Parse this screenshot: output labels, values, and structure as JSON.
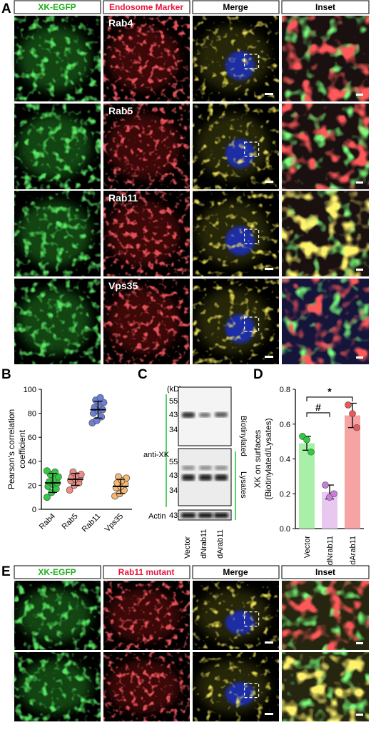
{
  "panels": {
    "A": {
      "letter": "A",
      "headers": [
        "XK-EGFP",
        "Endosome Marker",
        "Merge",
        "Inset"
      ],
      "header_colors": [
        "#1eb01e",
        "#e8173c",
        "#000000",
        "#000000"
      ],
      "rows": [
        "Rab4",
        "Rab5",
        "Rab11",
        "Vps35"
      ]
    },
    "B": {
      "letter": "B"
    },
    "C": {
      "letter": "C",
      "kd_label": "(kD)",
      "top_markers": [
        "55",
        "43",
        "34"
      ],
      "bottom_markers": [
        "55",
        "43",
        "34"
      ],
      "actin_marker": "43",
      "antibody_label": "anti-XK",
      "actin_label": "Actin",
      "section_labels": [
        "Biotinylated",
        "Lysates"
      ],
      "lanes": [
        "Vector",
        "dNrab11",
        "dArab11"
      ]
    },
    "D": {
      "letter": "D"
    },
    "E": {
      "letter": "E",
      "headers": [
        "XK-EGFP",
        "Rab11 mutant",
        "Merge",
        "Inset"
      ],
      "header_colors": [
        "#1eb01e",
        "#e8173c",
        "#000000",
        "#000000"
      ],
      "rows": [
        "dArab11",
        "dNrab11"
      ]
    }
  },
  "chart_data": [
    {
      "type": "scatter",
      "panel": "B",
      "title": "",
      "xlabel": "",
      "ylabel": "Pearson's correlation coefficient",
      "ylim": [
        0,
        100
      ],
      "yticks": [
        0,
        20,
        40,
        60,
        80,
        100
      ],
      "categories": [
        "Rab4",
        "Rab5",
        "Rab11",
        "Vps35"
      ],
      "colors": [
        "#2ecc40",
        "#f28b82",
        "#6a7fd6",
        "#f7b870"
      ],
      "series": [
        {
          "category": "Rab4",
          "mean": 22,
          "sd": 8,
          "values": [
            10,
            14,
            17,
            19,
            21,
            22,
            23,
            25,
            27,
            29,
            31,
            32
          ]
        },
        {
          "category": "Rab5",
          "mean": 25,
          "sd": 5,
          "values": [
            16,
            20,
            22,
            24,
            25,
            26,
            27,
            28,
            29,
            31
          ]
        },
        {
          "category": "Rab11",
          "mean": 83,
          "sd": 7,
          "values": [
            72,
            74,
            77,
            80,
            82,
            83,
            85,
            87,
            89,
            91,
            93
          ]
        },
        {
          "category": "Vps35",
          "mean": 19,
          "sd": 6,
          "values": [
            11,
            13,
            16,
            18,
            19,
            21,
            22,
            24,
            26,
            27
          ]
        }
      ]
    },
    {
      "type": "bar",
      "panel": "D",
      "title": "",
      "xlabel": "",
      "ylabel": "XK on surfaces (Biotinylated/Lysates)",
      "ylim": [
        0,
        0.8
      ],
      "yticks": [
        0.0,
        0.2,
        0.4,
        0.6,
        0.8
      ],
      "categories": [
        "Vector",
        "dNrab11",
        "dArab11"
      ],
      "colors": [
        "#a8f0a8",
        "#e8c8f0",
        "#f5a3a3"
      ],
      "dot_colors": [
        "#2ecc40",
        "#c77ddb",
        "#e85a5a"
      ],
      "values": [
        0.49,
        0.21,
        0.65
      ],
      "errors": [
        0.04,
        0.04,
        0.07
      ],
      "points": [
        [
          0.53,
          0.51,
          0.44
        ],
        [
          0.25,
          0.18,
          0.2
        ],
        [
          0.71,
          0.66,
          0.58
        ]
      ],
      "significance": [
        {
          "from": "Vector",
          "to": "dNrab11",
          "label": "#"
        },
        {
          "from": "Vector",
          "to": "dArab11",
          "label": "*"
        }
      ]
    }
  ]
}
